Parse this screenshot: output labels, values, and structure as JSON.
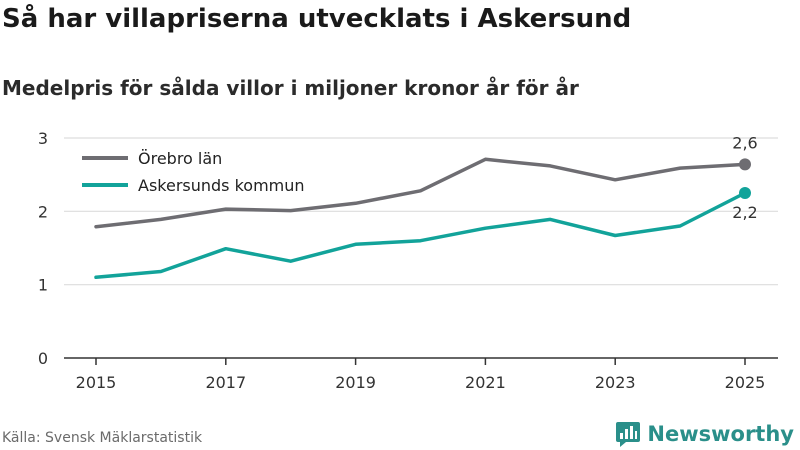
{
  "title": "Så har villapriserna utvecklats i Askersund",
  "subtitle": "Medelpris för sålda villor i miljoner kronor år för år",
  "source": "Källa: Svensk Mäklarstatistik",
  "brand": "Newsworthy",
  "colors": {
    "orebro": "#6e6d72",
    "askersund": "#12a39a",
    "grid": "#dddddd",
    "axis": "#333333",
    "brand": "#2a8f8a"
  },
  "chart_data": {
    "type": "line",
    "x": [
      2015,
      2016,
      2017,
      2018,
      2019,
      2020,
      2021,
      2022,
      2023,
      2024,
      2025
    ],
    "xticks": [
      "2015",
      "2017",
      "2019",
      "2021",
      "2023",
      "2025"
    ],
    "yticks": [
      "0",
      "1",
      "2",
      "3"
    ],
    "ylim": [
      0,
      3
    ],
    "grid": true,
    "legend_position": "top-left",
    "series": [
      {
        "name": "Örebro län",
        "color": "#6e6d72",
        "values": [
          1.79,
          1.89,
          2.03,
          2.01,
          2.11,
          2.28,
          2.71,
          2.62,
          2.43,
          2.59,
          2.64
        ],
        "end_label": "2,6",
        "end_label_position": "above"
      },
      {
        "name": "Askersunds kommun",
        "color": "#12a39a",
        "values": [
          1.1,
          1.18,
          1.49,
          1.32,
          1.55,
          1.6,
          1.77,
          1.89,
          1.67,
          1.8,
          2.25
        ],
        "end_label": "2,2",
        "end_label_position": "below"
      }
    ]
  }
}
